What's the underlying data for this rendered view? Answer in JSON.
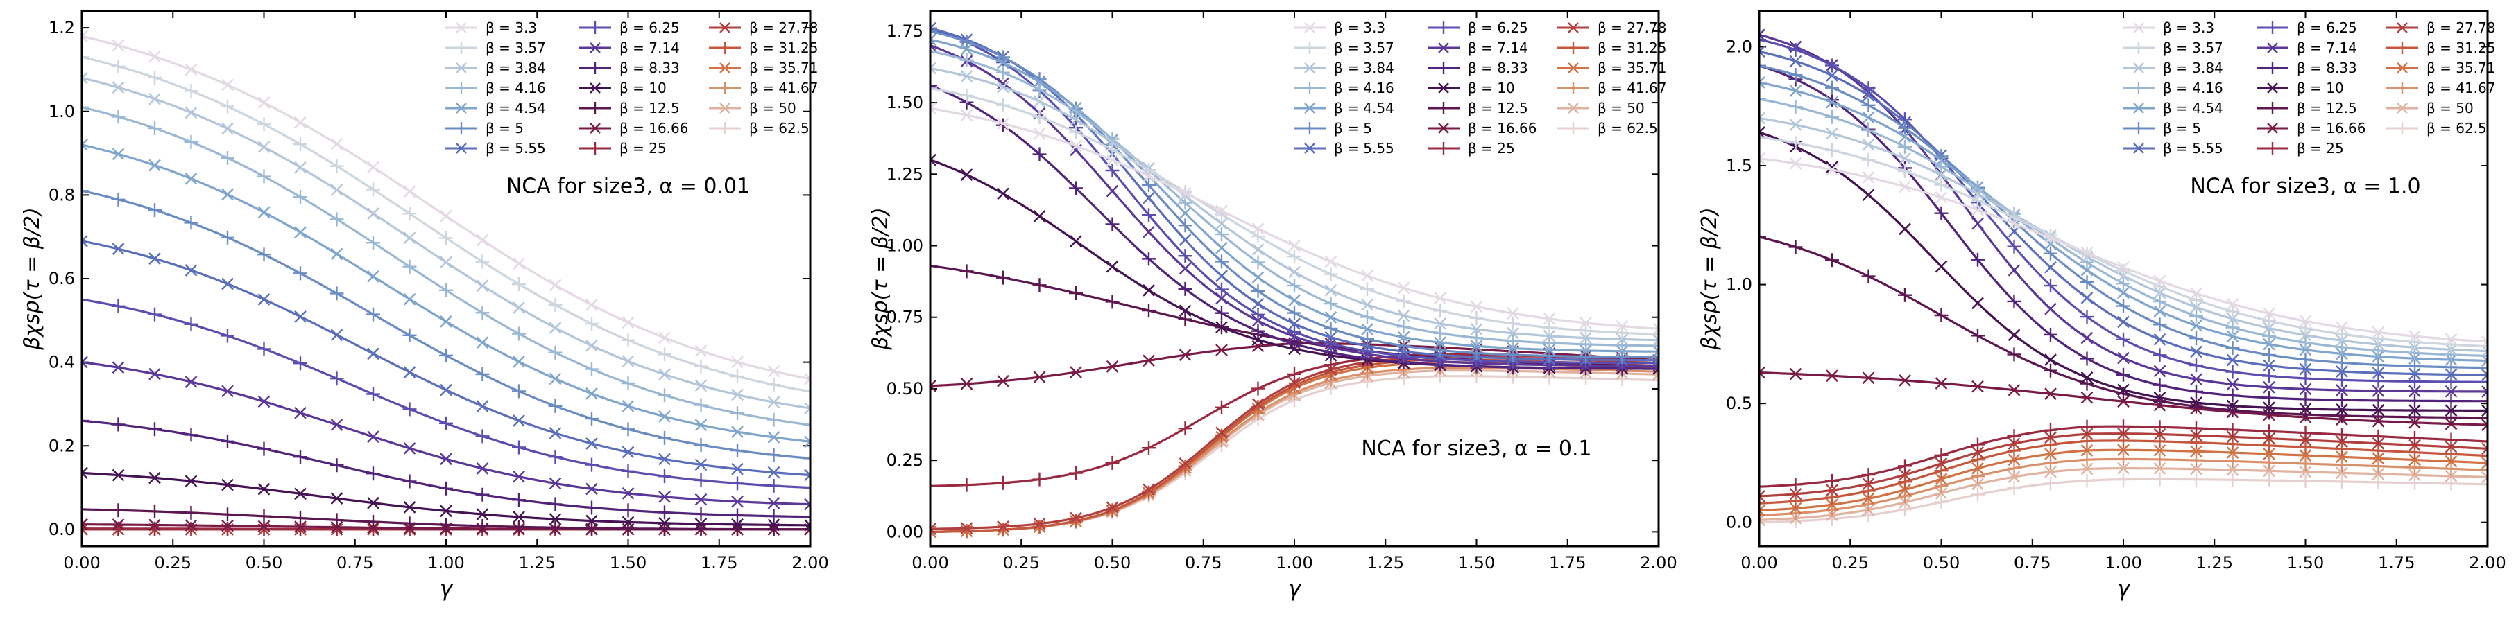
{
  "figure": {
    "legend_beta_values": [
      "3.3",
      "3.57",
      "3.84",
      "4.16",
      "4.54",
      "5",
      "5.55",
      "6.25",
      "7.14",
      "8.33",
      "10",
      "12.5",
      "16.66",
      "25",
      "27.78",
      "31.25",
      "35.71",
      "41.67",
      "50",
      "62.5"
    ],
    "legend_prefix": "β = ",
    "colors": [
      "#e2d9e2",
      "#cdd5de",
      "#b3c6d9",
      "#9ab8d4",
      "#80a5cc",
      "#6a8cc3",
      "#5a6ebb",
      "#5a4fb0",
      "#5a3799",
      "#52237a",
      "#451253",
      "#5c1650",
      "#7a1a47",
      "#9a2a42",
      "#b13f3e",
      "#c4573d",
      "#d17245",
      "#d9906a",
      "#e0b2a0",
      "#e6d0cf"
    ],
    "markers": [
      "x",
      "+",
      "x",
      "+",
      "x",
      "+",
      "x",
      "+",
      "x",
      "+",
      "x",
      "+",
      "x",
      "+",
      "x",
      "+",
      "x",
      "+",
      "x",
      "+"
    ],
    "xlabel": "γ",
    "ylabel": "βχsp(τ = β/2)",
    "panels": [
      {
        "annotation": "NCA for size3, α = 0.01",
        "xlim": [
          0,
          2
        ],
        "ylim": [
          -0.04,
          1.24
        ],
        "xticks": [
          "0.00",
          "0.25",
          "0.50",
          "0.75",
          "1.00",
          "1.25",
          "1.50",
          "1.75",
          "2.00"
        ],
        "yticks": [
          "0.0",
          "0.2",
          "0.4",
          "0.6",
          "0.8",
          "1.0",
          "1.2"
        ]
      },
      {
        "annotation": "NCA for size3, α = 0.1",
        "xlim": [
          0,
          2
        ],
        "ylim": [
          -0.05,
          1.82
        ],
        "xticks": [
          "0.00",
          "0.25",
          "0.50",
          "0.75",
          "1.00",
          "1.25",
          "1.50",
          "1.75",
          "2.00"
        ],
        "yticks": [
          "0.00",
          "0.25",
          "0.50",
          "0.75",
          "1.00",
          "1.25",
          "1.50",
          "1.75"
        ]
      },
      {
        "annotation": "NCA for size3, α = 1.0",
        "xlim": [
          0,
          2
        ],
        "ylim": [
          -0.1,
          2.15
        ],
        "xticks": [
          "0.00",
          "0.25",
          "0.50",
          "0.75",
          "1.00",
          "1.25",
          "1.50",
          "1.75",
          "2.00"
        ],
        "yticks": [
          "0.0",
          "0.5",
          "1.0",
          "1.5",
          "2.0"
        ]
      }
    ]
  },
  "chart_data": [
    {
      "type": "line",
      "title": "",
      "annotation": "NCA for size3, α = 0.01",
      "xlabel": "γ",
      "ylabel": "βχsp(τ = β/2)",
      "xlim": [
        0,
        2
      ],
      "ylim": [
        -0.04,
        1.24
      ],
      "legend_position": "top-right",
      "x": [
        0,
        0.1,
        0.2,
        0.3,
        0.4,
        0.5,
        0.6,
        0.7,
        0.8,
        0.9,
        1.0,
        1.1,
        1.2,
        1.3,
        1.4,
        1.5,
        1.6,
        1.7,
        1.8,
        1.9,
        2.0
      ],
      "series": [
        {
          "name": "β = 3.3",
          "curve": {
            "shape": "decay",
            "y0": 1.18,
            "yend": 0.36,
            "xc": 0.95,
            "w": 0.42
          }
        },
        {
          "name": "β = 3.57",
          "curve": {
            "shape": "decay",
            "y0": 1.13,
            "yend": 0.33,
            "xc": 0.92,
            "w": 0.41
          }
        },
        {
          "name": "β = 3.84",
          "curve": {
            "shape": "decay",
            "y0": 1.08,
            "yend": 0.29,
            "xc": 0.89,
            "w": 0.4
          }
        },
        {
          "name": "β = 4.16",
          "curve": {
            "shape": "decay",
            "y0": 1.01,
            "yend": 0.25,
            "xc": 0.86,
            "w": 0.39
          }
        },
        {
          "name": "β = 4.54",
          "curve": {
            "shape": "decay",
            "y0": 0.92,
            "yend": 0.21,
            "xc": 0.83,
            "w": 0.38
          }
        },
        {
          "name": "β = 5",
          "curve": {
            "shape": "decay",
            "y0": 0.81,
            "yend": 0.17,
            "xc": 0.8,
            "w": 0.37
          }
        },
        {
          "name": "β = 5.55",
          "curve": {
            "shape": "decay",
            "y0": 0.69,
            "yend": 0.13,
            "xc": 0.77,
            "w": 0.36
          }
        },
        {
          "name": "β = 6.25",
          "curve": {
            "shape": "decay",
            "y0": 0.55,
            "yend": 0.1,
            "xc": 0.74,
            "w": 0.35
          }
        },
        {
          "name": "β = 7.14",
          "curve": {
            "shape": "decay",
            "y0": 0.4,
            "yend": 0.06,
            "xc": 0.71,
            "w": 0.34
          }
        },
        {
          "name": "β = 8.33",
          "curve": {
            "shape": "decay",
            "y0": 0.26,
            "yend": 0.03,
            "xc": 0.68,
            "w": 0.33
          }
        },
        {
          "name": "β = 10",
          "curve": {
            "shape": "decay",
            "y0": 0.135,
            "yend": 0.01,
            "xc": 0.65,
            "w": 0.32
          }
        },
        {
          "name": "β = 12.5",
          "curve": {
            "shape": "decay",
            "y0": 0.048,
            "yend": 0.0,
            "xc": 0.6,
            "w": 0.3
          }
        },
        {
          "name": "β = 16.66",
          "curve": {
            "shape": "decay",
            "y0": 0.012,
            "yend": 0.0,
            "xc": 0.55,
            "w": 0.3
          }
        },
        {
          "name": "β = 25",
          "curve": {
            "shape": "decay",
            "y0": 0.002,
            "yend": 0.0,
            "xc": 0.5,
            "w": 0.3
          }
        },
        {
          "name": "β = 27.78",
          "curve": {
            "shape": "decay",
            "y0": 0.0,
            "yend": 0.0,
            "xc": 0.5,
            "w": 0.3
          }
        },
        {
          "name": "β = 31.25",
          "curve": {
            "shape": "decay",
            "y0": 0.0,
            "yend": 0.0,
            "xc": 0.5,
            "w": 0.3
          }
        },
        {
          "name": "β = 35.71",
          "curve": {
            "shape": "decay",
            "y0": 0.0,
            "yend": 0.0,
            "xc": 0.5,
            "w": 0.3
          }
        },
        {
          "name": "β = 41.67",
          "curve": {
            "shape": "decay",
            "y0": 0.0,
            "yend": 0.0,
            "xc": 0.5,
            "w": 0.3
          }
        },
        {
          "name": "β = 50",
          "curve": {
            "shape": "decay",
            "y0": 0.0,
            "yend": 0.0,
            "xc": 0.5,
            "w": 0.3
          }
        },
        {
          "name": "β = 62.5",
          "curve": {
            "shape": "decay",
            "y0": 0.0,
            "yend": 0.0,
            "xc": 0.5,
            "w": 0.3
          }
        }
      ]
    },
    {
      "type": "line",
      "title": "",
      "annotation": "NCA for size3, α = 0.1",
      "xlabel": "γ",
      "ylabel": "βχsp(τ = β/2)",
      "xlim": [
        0,
        2
      ],
      "ylim": [
        -0.05,
        1.82
      ],
      "legend_position": "top-right",
      "x": [
        0,
        0.1,
        0.2,
        0.3,
        0.4,
        0.5,
        0.6,
        0.7,
        0.8,
        0.9,
        1.0,
        1.1,
        1.2,
        1.3,
        1.4,
        1.5,
        1.6,
        1.7,
        1.8,
        1.9,
        2.0
      ],
      "series": [
        {
          "name": "β = 3.3",
          "curve": {
            "shape": "decay",
            "y0": 1.48,
            "yend": 0.71,
            "xc": 0.8,
            "w": 0.35
          }
        },
        {
          "name": "β = 3.57",
          "curve": {
            "shape": "decay",
            "y0": 1.55,
            "yend": 0.69,
            "xc": 0.75,
            "w": 0.3
          }
        },
        {
          "name": "β = 3.84",
          "curve": {
            "shape": "decay",
            "y0": 1.62,
            "yend": 0.67,
            "xc": 0.7,
            "w": 0.26
          }
        },
        {
          "name": "β = 4.16",
          "curve": {
            "shape": "decay",
            "y0": 1.68,
            "yend": 0.65,
            "xc": 0.66,
            "w": 0.24
          }
        },
        {
          "name": "β = 4.54",
          "curve": {
            "shape": "decay",
            "y0": 1.72,
            "yend": 0.63,
            "xc": 0.63,
            "w": 0.22
          }
        },
        {
          "name": "β = 5",
          "curve": {
            "shape": "decay",
            "y0": 1.75,
            "yend": 0.61,
            "xc": 0.6,
            "w": 0.21
          }
        },
        {
          "name": "β = 5.55",
          "curve": {
            "shape": "decay",
            "y0": 1.76,
            "yend": 0.6,
            "xc": 0.57,
            "w": 0.2
          }
        },
        {
          "name": "β = 6.25",
          "curve": {
            "shape": "decay",
            "y0": 1.76,
            "yend": 0.59,
            "xc": 0.53,
            "w": 0.2
          }
        },
        {
          "name": "β = 7.14",
          "curve": {
            "shape": "decay",
            "y0": 1.7,
            "yend": 0.58,
            "xc": 0.5,
            "w": 0.21
          }
        },
        {
          "name": "β = 8.33",
          "curve": {
            "shape": "decay",
            "y0": 1.56,
            "yend": 0.57,
            "xc": 0.46,
            "w": 0.22
          }
        },
        {
          "name": "β = 10",
          "curve": {
            "shape": "decay",
            "y0": 1.3,
            "yend": 0.57,
            "xc": 0.42,
            "w": 0.24
          }
        },
        {
          "name": "β = 12.5",
          "curve": {
            "shape": "decay",
            "y0": 0.93,
            "yend": 0.58,
            "xc": 0.55,
            "w": 0.35
          }
        },
        {
          "name": "β = 16.66",
          "curve": {
            "shape": "hump",
            "y0": 0.51,
            "ypeak": 0.68,
            "xpeak": 1.0,
            "yend": 0.6,
            "w": 0.22
          }
        },
        {
          "name": "β = 25",
          "curve": {
            "shape": "hump",
            "y0": 0.16,
            "ypeak": 0.63,
            "xpeak": 1.35,
            "yend": 0.6,
            "w": 0.16
          }
        },
        {
          "name": "β = 27.78",
          "curve": {
            "shape": "hump",
            "y0": 0.01,
            "ypeak": 0.62,
            "xpeak": 1.4,
            "yend": 0.59,
            "w": 0.14
          }
        },
        {
          "name": "β = 31.25",
          "curve": {
            "shape": "hump",
            "y0": 0.0,
            "ypeak": 0.61,
            "xpeak": 1.4,
            "yend": 0.58,
            "w": 0.14
          }
        },
        {
          "name": "β = 35.71",
          "curve": {
            "shape": "hump",
            "y0": 0.0,
            "ypeak": 0.6,
            "xpeak": 1.4,
            "yend": 0.57,
            "w": 0.14
          }
        },
        {
          "name": "β = 41.67",
          "curve": {
            "shape": "hump",
            "y0": 0.0,
            "ypeak": 0.58,
            "xpeak": 1.4,
            "yend": 0.56,
            "w": 0.14
          }
        },
        {
          "name": "β = 50",
          "curve": {
            "shape": "hump",
            "y0": 0.0,
            "ypeak": 0.57,
            "xpeak": 1.4,
            "yend": 0.55,
            "w": 0.14
          }
        },
        {
          "name": "β = 62.5",
          "curve": {
            "shape": "hump",
            "y0": 0.0,
            "ypeak": 0.55,
            "xpeak": 1.4,
            "yend": 0.53,
            "w": 0.14
          }
        }
      ]
    },
    {
      "type": "line",
      "title": "",
      "annotation": "NCA for size3, α = 1.0",
      "xlabel": "γ",
      "ylabel": "βχsp(τ = β/2)",
      "xlim": [
        0,
        2
      ],
      "ylim": [
        -0.1,
        2.15
      ],
      "legend_position": "top-right",
      "x": [
        0,
        0.1,
        0.2,
        0.3,
        0.4,
        0.5,
        0.6,
        0.7,
        0.8,
        0.9,
        1.0,
        1.1,
        1.2,
        1.3,
        1.4,
        1.5,
        1.6,
        1.7,
        1.8,
        1.9,
        2.0
      ],
      "series": [
        {
          "name": "β = 3.3",
          "curve": {
            "shape": "decay",
            "y0": 1.53,
            "yend": 0.76,
            "xc": 0.85,
            "w": 0.35
          }
        },
        {
          "name": "β = 3.57",
          "curve": {
            "shape": "decay",
            "y0": 1.62,
            "yend": 0.74,
            "xc": 0.8,
            "w": 0.32
          }
        },
        {
          "name": "β = 3.84",
          "curve": {
            "shape": "decay",
            "y0": 1.7,
            "yend": 0.72,
            "xc": 0.76,
            "w": 0.3
          }
        },
        {
          "name": "β = 4.16",
          "curve": {
            "shape": "decay",
            "y0": 1.78,
            "yend": 0.7,
            "xc": 0.72,
            "w": 0.28
          }
        },
        {
          "name": "β = 4.54",
          "curve": {
            "shape": "decay",
            "y0": 1.85,
            "yend": 0.68,
            "xc": 0.69,
            "w": 0.26
          }
        },
        {
          "name": "β = 5",
          "curve": {
            "shape": "decay",
            "y0": 1.92,
            "yend": 0.65,
            "xc": 0.66,
            "w": 0.24
          }
        },
        {
          "name": "β = 5.55",
          "curve": {
            "shape": "decay",
            "y0": 1.98,
            "yend": 0.62,
            "xc": 0.63,
            "w": 0.22
          }
        },
        {
          "name": "β = 6.25",
          "curve": {
            "shape": "decay",
            "y0": 2.03,
            "yend": 0.59,
            "xc": 0.6,
            "w": 0.2
          }
        },
        {
          "name": "β = 7.14",
          "curve": {
            "shape": "decay",
            "y0": 2.05,
            "yend": 0.55,
            "xc": 0.56,
            "w": 0.19
          }
        },
        {
          "name": "β = 8.33",
          "curve": {
            "shape": "decay",
            "y0": 1.92,
            "yend": 0.51,
            "xc": 0.52,
            "w": 0.19
          }
        },
        {
          "name": "β = 10",
          "curve": {
            "shape": "decay",
            "y0": 1.64,
            "yend": 0.47,
            "xc": 0.48,
            "w": 0.2
          }
        },
        {
          "name": "β = 12.5",
          "curve": {
            "shape": "decay",
            "y0": 1.2,
            "yend": 0.44,
            "xc": 0.5,
            "w": 0.25
          }
        },
        {
          "name": "β = 16.66",
          "curve": {
            "shape": "decay",
            "y0": 0.63,
            "yend": 0.41,
            "xc": 0.9,
            "w": 0.4
          }
        },
        {
          "name": "β = 25",
          "curve": {
            "shape": "hump",
            "y0": 0.15,
            "ypeak": 0.42,
            "xpeak": 0.9,
            "yend": 0.34,
            "w": 0.15
          }
        },
        {
          "name": "β = 27.78",
          "curve": {
            "shape": "hump",
            "y0": 0.11,
            "ypeak": 0.39,
            "xpeak": 0.9,
            "yend": 0.31,
            "w": 0.15
          }
        },
        {
          "name": "β = 31.25",
          "curve": {
            "shape": "hump",
            "y0": 0.08,
            "ypeak": 0.36,
            "xpeak": 0.9,
            "yend": 0.28,
            "w": 0.15
          }
        },
        {
          "name": "β = 35.71",
          "curve": {
            "shape": "hump",
            "y0": 0.05,
            "ypeak": 0.32,
            "xpeak": 0.9,
            "yend": 0.25,
            "w": 0.15
          }
        },
        {
          "name": "β = 41.67",
          "curve": {
            "shape": "hump",
            "y0": 0.03,
            "ypeak": 0.28,
            "xpeak": 0.9,
            "yend": 0.22,
            "w": 0.15
          }
        },
        {
          "name": "β = 50",
          "curve": {
            "shape": "hump",
            "y0": 0.01,
            "ypeak": 0.24,
            "xpeak": 0.9,
            "yend": 0.19,
            "w": 0.15
          }
        },
        {
          "name": "β = 62.5",
          "curve": {
            "shape": "hump",
            "y0": 0.0,
            "ypeak": 0.19,
            "xpeak": 0.95,
            "yend": 0.16,
            "w": 0.15
          }
        }
      ]
    }
  ]
}
